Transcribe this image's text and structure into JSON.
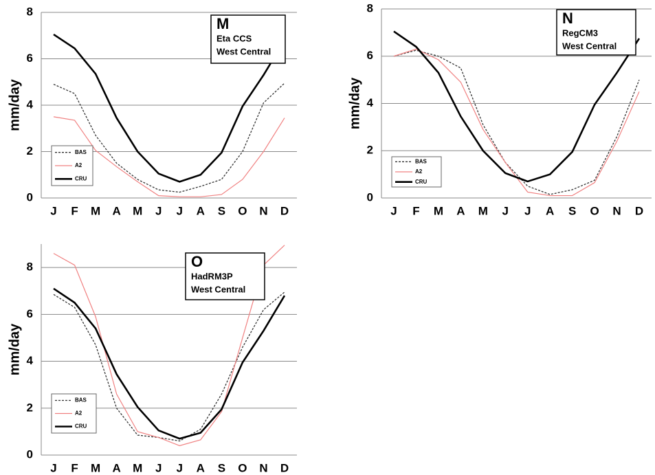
{
  "chart_data": [
    {
      "type": "line",
      "panel_label": "M",
      "model": "Eta CCS",
      "region": "West Central",
      "y_label": "mm/day",
      "categories": [
        "J",
        "F",
        "M",
        "A",
        "M",
        "J",
        "J",
        "A",
        "S",
        "O",
        "N",
        "D"
      ],
      "ylim": [
        0,
        8
      ],
      "yticks": [
        0,
        2,
        4,
        6,
        8
      ],
      "grid": true,
      "series": [
        {
          "name": "BAS",
          "color": "#333333",
          "values": [
            4.9,
            4.5,
            2.7,
            1.5,
            0.8,
            0.35,
            0.25,
            0.5,
            0.8,
            2.0,
            4.1,
            4.95
          ]
        },
        {
          "name": "A2",
          "color": "#f08080",
          "values": [
            3.5,
            3.35,
            2.05,
            1.35,
            0.7,
            0.1,
            0.05,
            0.05,
            0.15,
            0.8,
            2.0,
            3.45
          ]
        },
        {
          "name": "CRU",
          "color": "#000000",
          "values": [
            7.05,
            6.45,
            5.35,
            3.45,
            2.0,
            1.05,
            0.7,
            1.0,
            1.95,
            3.95,
            5.3,
            6.8
          ]
        }
      ]
    },
    {
      "type": "line",
      "panel_label": "N",
      "model": "RegCM3",
      "region": "West Central",
      "y_label": "mm/day",
      "categories": [
        "J",
        "F",
        "M",
        "A",
        "M",
        "J",
        "J",
        "A",
        "S",
        "O",
        "N",
        "D"
      ],
      "ylim": [
        0,
        8
      ],
      "yticks": [
        0,
        2,
        4,
        6,
        8
      ],
      "grid": true,
      "series": [
        {
          "name": "BAS",
          "color": "#333333",
          "values": [
            6.0,
            6.25,
            6.0,
            5.5,
            3.1,
            1.5,
            0.5,
            0.15,
            0.35,
            0.75,
            2.6,
            5.0
          ]
        },
        {
          "name": "A2",
          "color": "#f08080",
          "values": [
            6.0,
            6.3,
            5.85,
            4.9,
            2.9,
            1.5,
            0.25,
            0.1,
            0.1,
            0.65,
            2.4,
            4.5
          ]
        },
        {
          "name": "CRU",
          "color": "#000000",
          "values": [
            7.05,
            6.4,
            5.3,
            3.45,
            2.0,
            1.05,
            0.7,
            1.0,
            1.95,
            3.95,
            5.3,
            6.75
          ]
        }
      ]
    },
    {
      "type": "line",
      "panel_label": "O",
      "model": "HadRM3P",
      "region": "West Central",
      "y_label": "mm/day",
      "categories": [
        "J",
        "F",
        "M",
        "A",
        "M",
        "J",
        "J",
        "A",
        "S",
        "O",
        "N",
        "D"
      ],
      "ylim": [
        0,
        9
      ],
      "yticks": [
        0,
        2,
        4,
        6,
        8
      ],
      "grid": true,
      "series": [
        {
          "name": "BAS",
          "color": "#333333",
          "values": [
            6.85,
            6.3,
            4.7,
            2.0,
            0.85,
            0.75,
            0.6,
            1.1,
            2.6,
            4.6,
            6.2,
            6.95
          ]
        },
        {
          "name": "A2",
          "color": "#f08080",
          "values": [
            8.6,
            8.1,
            5.9,
            2.6,
            1.0,
            0.75,
            0.4,
            0.65,
            1.85,
            5.0,
            8.1,
            8.95
          ]
        },
        {
          "name": "CRU",
          "color": "#000000",
          "values": [
            7.1,
            6.5,
            5.4,
            3.45,
            2.05,
            1.05,
            0.7,
            0.95,
            1.95,
            3.95,
            5.3,
            6.8
          ]
        }
      ]
    }
  ]
}
